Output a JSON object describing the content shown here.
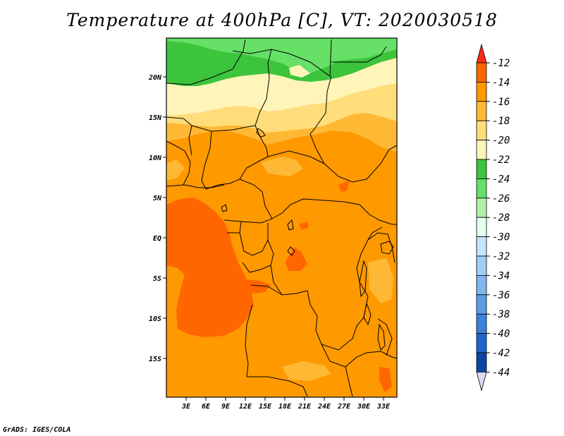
{
  "title": "Temperature at 400hPa [C], VT: 2020030518",
  "credit": "GrADS: IGES/COLA",
  "lat_ticks": [
    "20N",
    "15N",
    "10N",
    "5N",
    "EQ",
    "5S",
    "10S",
    "15S"
  ],
  "lon_ticks": [
    "3E",
    "6E",
    "9E",
    "12E",
    "15E",
    "18E",
    "21E",
    "24E",
    "27E",
    "30E",
    "33E"
  ],
  "colorbar": {
    "labels": [
      "-12",
      "-14",
      "-16",
      "-18",
      "-20",
      "-22",
      "-24",
      "-26",
      "-28",
      "-30",
      "-32",
      "-34",
      "-36",
      "-38",
      "-40",
      "-42",
      "-44"
    ],
    "colors": {
      "c_gt12": "#ff2a1a",
      "c12_14": "#ff6600",
      "c14_16": "#ff9900",
      "c16_18": "#ffb833",
      "c18_20": "#ffdd7a",
      "c20_22": "#fff5b8",
      "c22_24": "#3cc43c",
      "c24_26": "#66e066",
      "c26_28": "#b0f0a8",
      "c28_30": "#e6ffee",
      "c30_32": "#c4e6ff",
      "c32_34": "#a0cff5",
      "c34_36": "#7fb8ef",
      "c36_38": "#5a9fe6",
      "c38_40": "#3a82dc",
      "c40_42": "#1f66cc",
      "c42_44": "#0a46a6",
      "c44_46": "#081a6e",
      "c_lt44": "#dcd8f5"
    }
  }
}
